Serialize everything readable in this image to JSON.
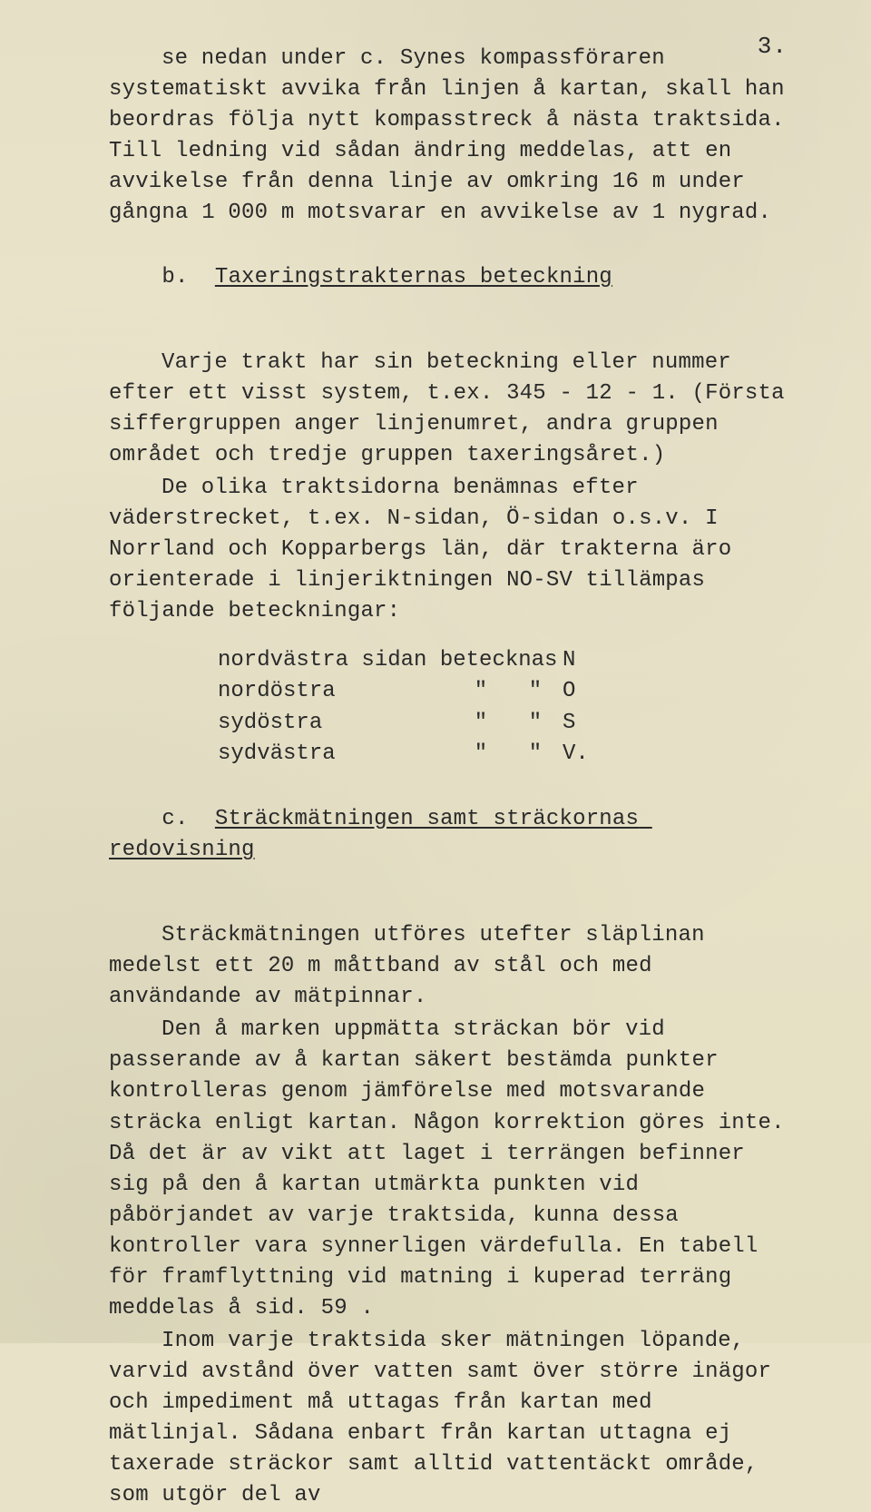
{
  "page_number": "3.",
  "typography": {
    "font_family": "Courier New",
    "body_fontsize_pt": 18,
    "line_height": 1.42,
    "text_color": "#2a2a2a",
    "background_color": "#e8e2c8"
  },
  "para1_a": "se nedan under c. Synes kompassföraren systematiskt avvika från linjen å kartan, skall han beordras följa nytt kompasstreck å nästa traktsida. Till ledning vid sådan ändring meddelas, att en avvikelse från denna linje av omkring 16 m under gångna 1 000 m motsvarar en avvikelse av 1 nygrad.",
  "section_b_prefix": "b.  ",
  "section_b_title": "Taxeringstrakternas beteckning",
  "para2": "Varje trakt har sin beteckning eller nummer efter ett visst system, t.ex. 345 - 12 - 1. (Första siffergruppen anger linjenumret, andra gruppen området och tredje gruppen taxeringsåret.)",
  "para3": "De olika traktsidorna benämnas efter väderstrecket, t.ex. N-sidan, Ö-sidan o.s.v. I Norrland och Kopparbergs län, där trakterna äro orienterade i linjeriktningen NO-SV tillämpas följande beteckningar:",
  "designation_table": {
    "rows": [
      {
        "c1": "nordvästra sidan betecknas",
        "c2": "",
        "c3": "",
        "c4": "N"
      },
      {
        "c1": "nordöstra",
        "c2": "\"",
        "c3": "\"",
        "c4": "O"
      },
      {
        "c1": "sydöstra",
        "c2": "\"",
        "c3": "\"",
        "c4": "S"
      },
      {
        "c1": "sydvästra",
        "c2": "\"",
        "c3": "\"",
        "c4": "V."
      }
    ]
  },
  "section_c_prefix": "c.  ",
  "section_c_title": "Sträckmätningen samt sträckornas redovisning",
  "para4": "Sträckmätningen utföres utefter släplinan medelst ett 20 m måttband av stål och med användande av mätpinnar.",
  "para5": "Den å marken uppmätta sträckan bör vid passerande av å kartan säkert bestämda punkter kontrolleras genom jämförelse med motsvarande sträcka enligt kartan. Någon korrektion göres inte. Då det är av vikt att laget i terrängen befinner sig på den å kartan utmärkta punkten vid påbörjandet av varje traktsida, kunna dessa kontroller vara synnerligen värdefulla. En tabell för framflyttning vid matning i kuperad terräng meddelas å sid. 59 .",
  "para6": "Inom varje traktsida sker mätningen löpande, varvid avstånd över vatten samt över större inägor och impediment må uttagas från kartan med mätlinjal. Sådana enbart från kartan uttagna ej taxerade sträckor samt alltid vattentäckt område, som utgör del av"
}
